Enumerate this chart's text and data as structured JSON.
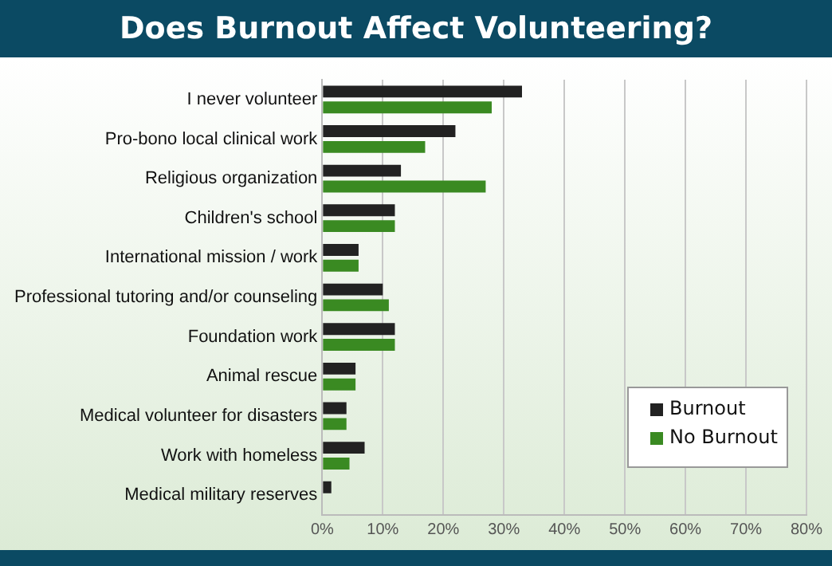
{
  "chart_data": {
    "type": "bar",
    "orientation": "horizontal",
    "title": "Does Burnout Affect Volunteering?",
    "categories": [
      "I never volunteer",
      "Pro-bono local clinical work",
      "Religious organization",
      "Children's school",
      "International mission / work",
      "Professional tutoring and/or counseling",
      "Foundation work",
      "Animal rescue",
      "Medical volunteer for disasters",
      "Work with homeless",
      "Medical military reserves"
    ],
    "series": [
      {
        "name": "Burnout",
        "color": "#222222",
        "values": [
          33,
          22,
          13,
          12,
          6,
          10,
          12,
          5.5,
          4,
          7,
          1.5
        ]
      },
      {
        "name": "No Burnout",
        "color": "#3a8a22",
        "values": [
          28,
          17,
          27,
          12,
          6,
          11,
          12,
          5.5,
          4,
          4.5,
          0
        ]
      }
    ],
    "xlim": [
      0,
      80
    ],
    "xticks": [
      {
        "value": 0,
        "label": "0%"
      },
      {
        "value": 10,
        "label": "10%"
      },
      {
        "value": 20,
        "label": "20%"
      },
      {
        "value": 30,
        "label": "30%"
      },
      {
        "value": 40,
        "label": "40%"
      },
      {
        "value": 50,
        "label": "50%"
      },
      {
        "value": 60,
        "label": "60%"
      },
      {
        "value": 70,
        "label": "70%"
      },
      {
        "value": 80,
        "label": "80%"
      }
    ],
    "grid": "x",
    "legend": "bottom right"
  }
}
